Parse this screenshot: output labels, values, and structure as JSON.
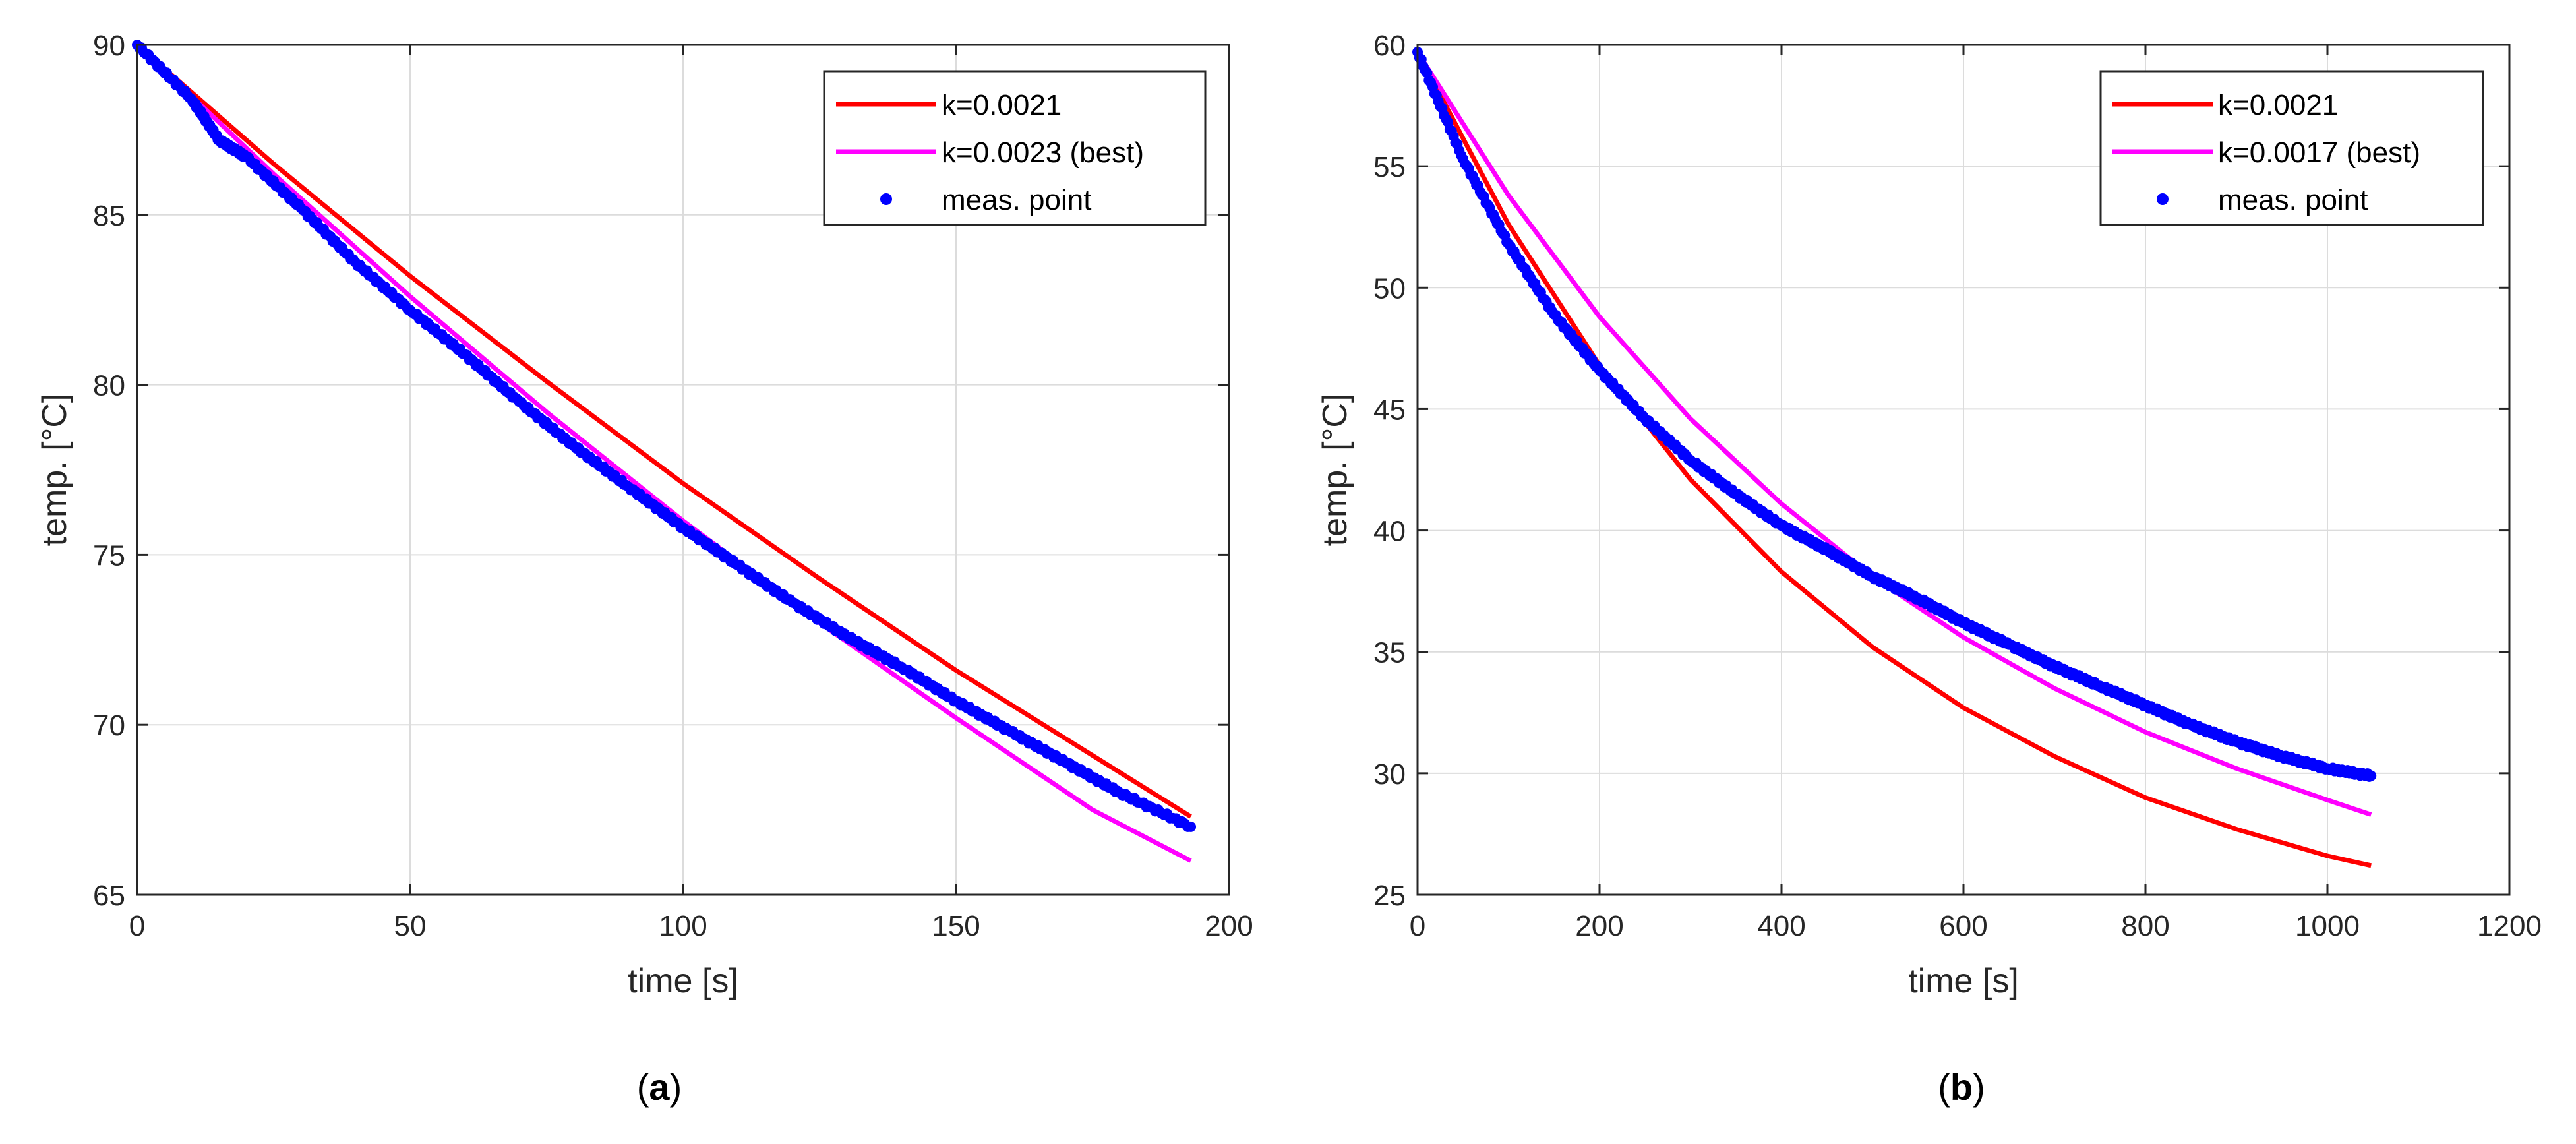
{
  "chart_data": [
    {
      "type": "line",
      "caption_prefix": "(",
      "caption_letter": "a",
      "caption_suffix": ")",
      "xlabel": "time [s]",
      "ylabel": "temp. [°C]",
      "xlim": [
        0,
        200
      ],
      "ylim": [
        65,
        90
      ],
      "xticks": [
        "0",
        "50",
        "100",
        "150",
        "200"
      ],
      "yticks": [
        "65",
        "70",
        "75",
        "80",
        "85",
        "90"
      ],
      "grid": true,
      "legend_position": "top-right",
      "series": [
        {
          "name": "k=0.0021",
          "kind": "line",
          "color": "#ff0000",
          "x": [
            0,
            25,
            50,
            75,
            100,
            125,
            150,
            175,
            193
          ],
          "y": [
            90,
            86.5,
            83.2,
            80.1,
            77.1,
            74.3,
            71.6,
            69.1,
            67.3
          ]
        },
        {
          "name": "k=0.0023 (best)",
          "kind": "line",
          "color": "#ff00ff",
          "x": [
            0,
            25,
            50,
            75,
            100,
            125,
            150,
            175,
            193
          ],
          "y": [
            90,
            86.2,
            82.6,
            79.2,
            76.0,
            73.0,
            70.2,
            67.5,
            66.0
          ]
        },
        {
          "name": "meas. point",
          "kind": "scatter",
          "color": "#0000ff",
          "x": [
            0,
            10,
            15,
            20,
            30,
            40,
            50,
            60,
            70,
            80,
            90,
            100,
            110,
            120,
            130,
            140,
            150,
            160,
            170,
            180,
            193
          ],
          "y": [
            90,
            88.4,
            87.2,
            86.7,
            85.2,
            83.6,
            82.2,
            80.9,
            79.5,
            78.2,
            77.0,
            75.8,
            74.7,
            73.6,
            72.6,
            71.7,
            70.7,
            69.8,
            68.9,
            68.0,
            67.0
          ]
        }
      ]
    },
    {
      "type": "line",
      "caption_prefix": "(",
      "caption_letter": "b",
      "caption_suffix": ")",
      "xlabel": "time [s]",
      "ylabel": "temp. [°C]",
      "xlim": [
        0,
        1200
      ],
      "ylim": [
        25,
        60
      ],
      "xticks": [
        "0",
        "200",
        "400",
        "600",
        "800",
        "1000",
        "1200"
      ],
      "yticks": [
        "25",
        "30",
        "35",
        "40",
        "45",
        "50",
        "55",
        "60"
      ],
      "grid": true,
      "legend_position": "top-right",
      "series": [
        {
          "name": "k=0.0021",
          "kind": "line",
          "color": "#ff0000",
          "x": [
            0,
            100,
            200,
            300,
            400,
            500,
            600,
            700,
            800,
            900,
            1000,
            1048
          ],
          "y": [
            59.7,
            52.6,
            46.8,
            42.1,
            38.3,
            35.2,
            32.7,
            30.7,
            29.0,
            27.7,
            26.6,
            26.2
          ]
        },
        {
          "name": "k=0.0017 (best)",
          "kind": "line",
          "color": "#ff00ff",
          "x": [
            0,
            100,
            200,
            300,
            400,
            500,
            600,
            700,
            800,
            900,
            1000,
            1048
          ],
          "y": [
            59.7,
            53.8,
            48.8,
            44.6,
            41.1,
            38.1,
            35.6,
            33.5,
            31.7,
            30.2,
            28.9,
            28.3
          ]
        },
        {
          "name": "meas. point",
          "kind": "scatter",
          "color": "#0000ff",
          "x": [
            0,
            50,
            100,
            150,
            200,
            250,
            300,
            350,
            400,
            450,
            500,
            550,
            600,
            650,
            700,
            750,
            800,
            850,
            900,
            950,
            1000,
            1048
          ],
          "y": [
            59.7,
            55.3,
            51.8,
            48.9,
            46.6,
            44.6,
            42.9,
            41.5,
            40.2,
            39.2,
            38.1,
            37.2,
            36.2,
            35.3,
            34.4,
            33.6,
            32.8,
            32.0,
            31.3,
            30.7,
            30.2,
            29.9
          ]
        }
      ]
    }
  ]
}
